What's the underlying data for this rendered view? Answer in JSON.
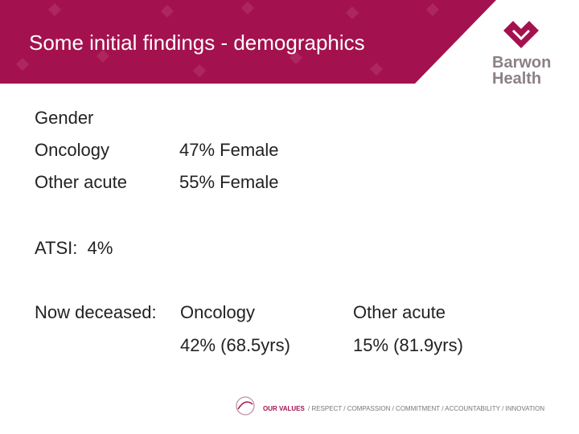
{
  "header": {
    "title": "Some initial findings - demographics"
  },
  "logo": {
    "line1": "Barwon",
    "line2": "Health"
  },
  "body": {
    "gender": {
      "heading": "Gender",
      "rows": [
        [
          "Oncology",
          "47% Female"
        ],
        [
          "Other acute",
          "55% Female"
        ]
      ]
    },
    "atsi": "ATSI:  4%",
    "deceased": {
      "label": "Now deceased:",
      "columns": [
        [
          "Oncology",
          "42% (68.5yrs)"
        ],
        [
          "Other acute",
          "15% (81.9yrs)"
        ]
      ]
    }
  },
  "footer": {
    "values_label": "OUR VALUES",
    "values": "/ RESPECT / COMPASSION / COMMITMENT / ACCOUNTABILITY / INNOVATION"
  }
}
